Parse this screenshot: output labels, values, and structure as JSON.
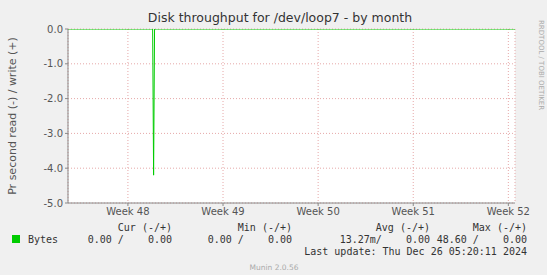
{
  "chart_data": {
    "type": "line",
    "title": "Disk throughput for /dev/loop7 - by month",
    "y_label": "Pr second read (-) / write (+)",
    "x": [
      47.37,
      48.26,
      48.27,
      48.28,
      52.07
    ],
    "series": [
      {
        "name": "Bytes",
        "color": "#00cc00",
        "values": [
          0,
          0,
          -4.2,
          0,
          0
        ]
      }
    ],
    "xlim": [
      47.37,
      52.07
    ],
    "xticks": [
      {
        "value": 48,
        "label": "Week 48"
      },
      {
        "value": 49,
        "label": "Week 49"
      },
      {
        "value": 50,
        "label": "Week 50"
      },
      {
        "value": 51,
        "label": "Week 51"
      },
      {
        "value": 52,
        "label": "Week 52"
      }
    ],
    "ylim": [
      -5,
      0
    ],
    "yticks": [
      {
        "value": 0,
        "label": "0.0"
      },
      {
        "value": -1,
        "label": "-1.0"
      },
      {
        "value": -2,
        "label": "-2.0"
      },
      {
        "value": -3,
        "label": "-3.0"
      },
      {
        "value": -4,
        "label": "-4.0"
      },
      {
        "value": -5,
        "label": "-5.0"
      }
    ],
    "grid": true,
    "legend_table": {
      "headers": [
        "Cur (-/+)",
        "Min (-/+)",
        "Avg (-/+)",
        "Max (-/+)"
      ],
      "rows": [
        {
          "name": "Bytes",
          "cells": [
            "0.00 /    0.00",
            "0.00 /    0.00",
            "13.27m/    0.00",
            "48.60 /    0.00"
          ]
        }
      ]
    },
    "last_update": "Last update: Thu Dec 26 05:20:11 2024",
    "footer": "Munin 2.0.56",
    "watermark": "RRDTOOL / TOBI OETIKER"
  }
}
